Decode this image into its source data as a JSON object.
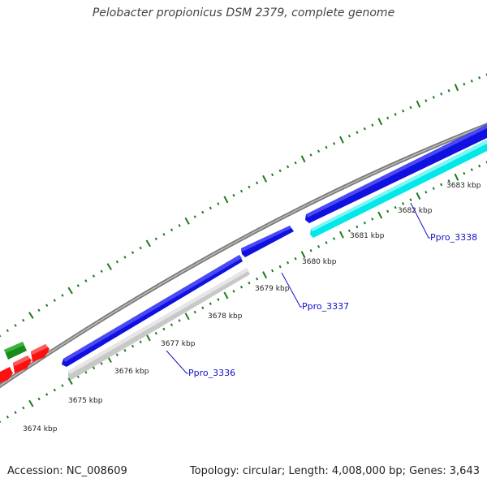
{
  "title": "Pelobacter propionicus DSM 2379, complete genome",
  "footer": {
    "accession": "Accession: NC_008609",
    "summary": "Topology: circular; Length: 4,008,000 bp; Genes: 3,643"
  },
  "colors": {
    "backbone": "#7a7a7a",
    "tick": "#1a7a1a",
    "forward_gene": "#1010e0",
    "reverse_gene_grey": "#c8c8c8",
    "reverse_gene_cyan": "#00e8e8",
    "red_gene": "#ff1010",
    "green_gene": "#1a8a1a",
    "label": "#1010c8"
  },
  "kbp_labels": [
    "3674 kbp",
    "3675 kbp",
    "3676 kbp",
    "3677 kbp",
    "3678 kbp",
    "3679 kbp",
    "3680 kbp",
    "3681 kbp",
    "3682 kbp",
    "3683 kbp"
  ],
  "gene_labels": [
    "Ppro_3336",
    "Ppro_3337",
    "Ppro_3338"
  ]
}
